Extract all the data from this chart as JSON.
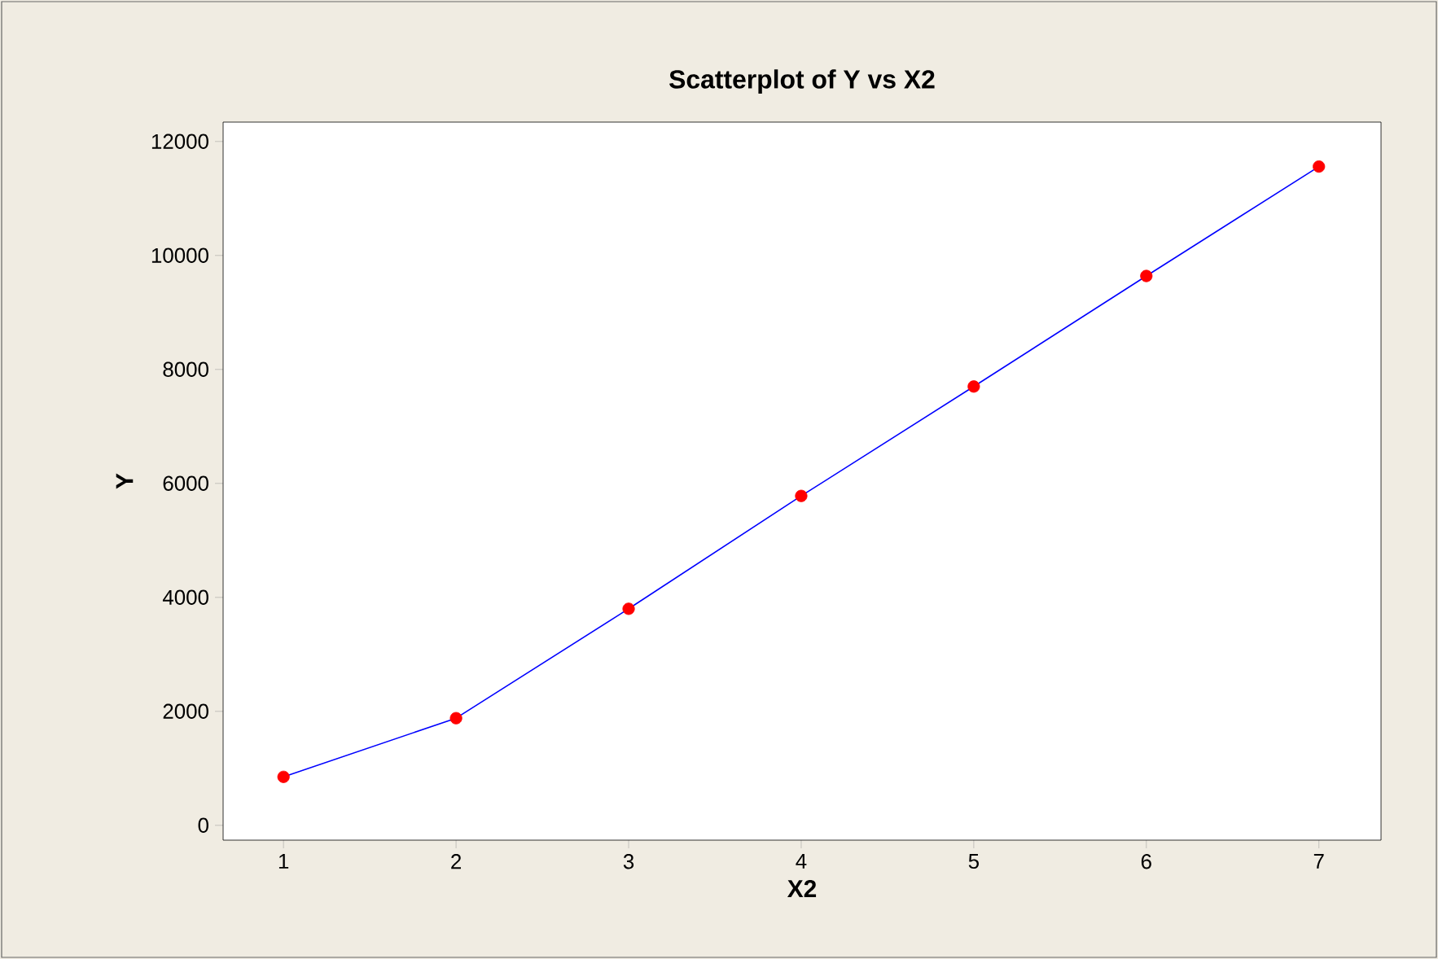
{
  "chart_data": {
    "type": "line",
    "title": "Scatterplot of Y vs X2",
    "xlabel": "X2",
    "ylabel": "Y",
    "series": [
      {
        "color": "#0000ff",
        "x": [
          1,
          2,
          3,
          4,
          5,
          6,
          7
        ],
        "values": [
          850,
          1880,
          3800,
          5780,
          7700,
          9640,
          11560
        ]
      },
      {
        "type": "scatter",
        "color": "#ff0000",
        "marker": "circle",
        "x": [
          1,
          2,
          3,
          4,
          5,
          6,
          7
        ],
        "values": [
          850,
          1880,
          3800,
          5780,
          7700,
          9640,
          11560
        ]
      }
    ],
    "xlim": [
      0.65,
      7.36
    ],
    "ylim": [
      -260,
      12340
    ],
    "xticks": [
      1,
      2,
      3,
      4,
      5,
      6,
      7
    ],
    "yticks": [
      0,
      2000,
      4000,
      6000,
      8000,
      10000,
      12000
    ]
  }
}
